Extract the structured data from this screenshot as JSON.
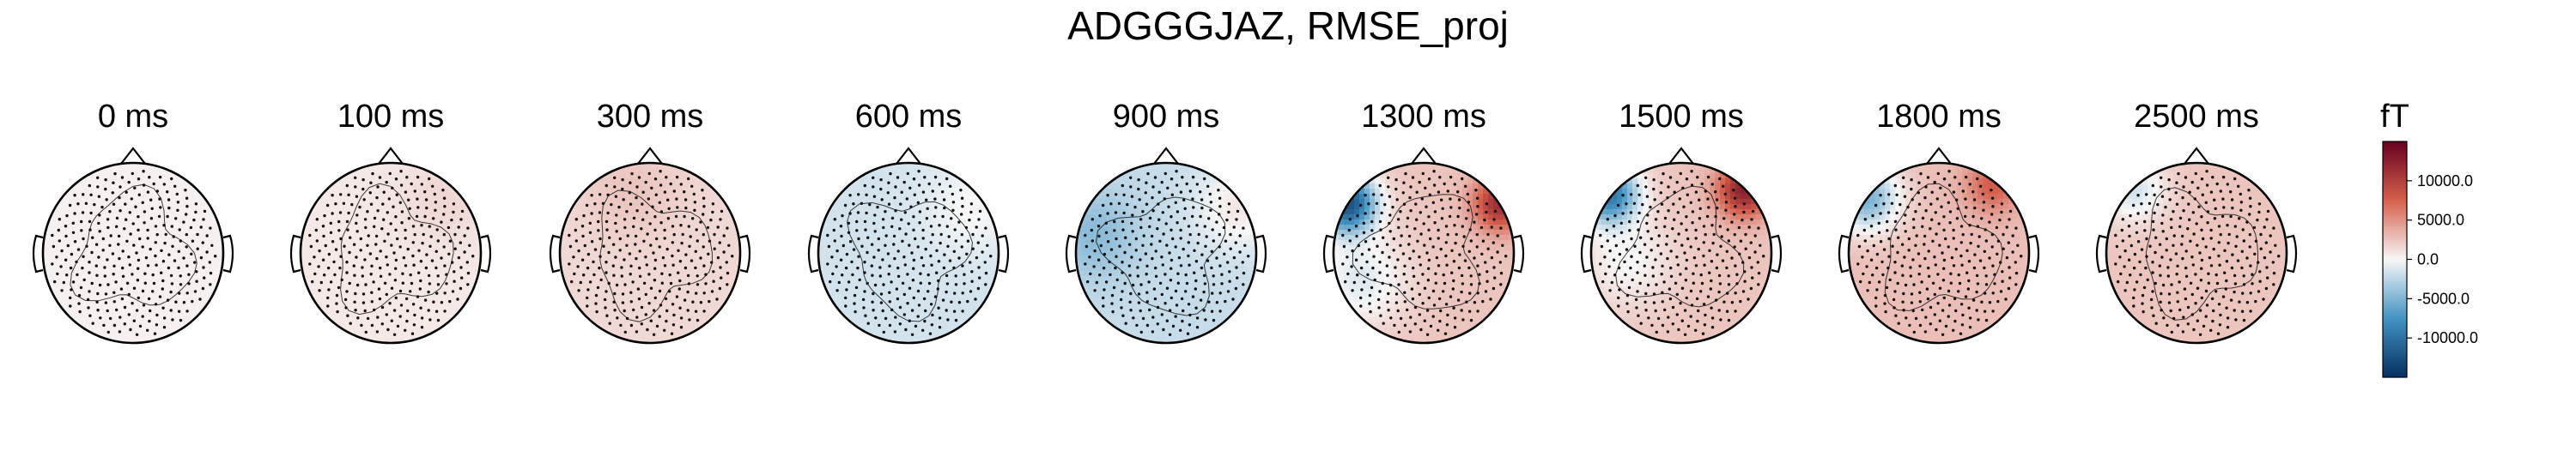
{
  "figure": {
    "title": "ADGGGJAZ, RMSE_proj"
  },
  "chart_data": {
    "type": "heatmap",
    "title": "ADGGGJAZ, RMSE_proj",
    "panels": [
      {
        "label": "0 ms",
        "time_ms": 0,
        "field": {
          "base": 300,
          "poles": []
        }
      },
      {
        "label": "100 ms",
        "time_ms": 100,
        "field": {
          "base": 700,
          "poles": [
            {
              "dx": 0.6,
              "dy": -0.6,
              "amp": 900,
              "width": 0.5
            }
          ]
        }
      },
      {
        "label": "300 ms",
        "time_ms": 300,
        "field": {
          "base": 1500,
          "poles": [
            {
              "dx": -0.2,
              "dy": -0.7,
              "amp": 1000,
              "width": 0.55
            }
          ]
        }
      },
      {
        "label": "600 ms",
        "time_ms": 600,
        "field": {
          "base": -1500,
          "poles": [
            {
              "dx": 0.7,
              "dy": -0.5,
              "amp": 1600,
              "width": 0.5
            }
          ]
        }
      },
      {
        "label": "900 ms",
        "time_ms": 900,
        "field": {
          "base": -2000,
          "poles": [
            {
              "dx": -0.8,
              "dy": -0.2,
              "amp": -2500,
              "width": 0.5
            },
            {
              "dx": 0.8,
              "dy": -0.5,
              "amp": 2800,
              "width": 0.45
            }
          ]
        }
      },
      {
        "label": "1300 ms",
        "time_ms": 1300,
        "field": {
          "base": 2500,
          "poles": [
            {
              "dx": -0.85,
              "dy": -0.55,
              "amp": -15000,
              "width": 0.32
            },
            {
              "dx": 0.85,
              "dy": -0.55,
              "amp": 9000,
              "width": 0.3
            },
            {
              "dx": -0.7,
              "dy": 0.3,
              "amp": -3500,
              "width": 0.5
            }
          ]
        }
      },
      {
        "label": "1500 ms",
        "time_ms": 1500,
        "field": {
          "base": 2500,
          "poles": [
            {
              "dx": -0.8,
              "dy": -0.65,
              "amp": -12000,
              "width": 0.32
            },
            {
              "dx": 0.7,
              "dy": -0.7,
              "amp": 10000,
              "width": 0.3
            },
            {
              "dx": -0.6,
              "dy": 0.1,
              "amp": -2500,
              "width": 0.5
            }
          ]
        }
      },
      {
        "label": "1800 ms",
        "time_ms": 1800,
        "field": {
          "base": 2800,
          "poles": [
            {
              "dx": -0.8,
              "dy": -0.6,
              "amp": -8000,
              "width": 0.35
            },
            {
              "dx": 0.6,
              "dy": -0.75,
              "amp": 5000,
              "width": 0.3
            }
          ]
        }
      },
      {
        "label": "2500 ms",
        "time_ms": 2500,
        "field": {
          "base": 2500,
          "poles": [
            {
              "dx": -0.7,
              "dy": -0.7,
              "amp": -4000,
              "width": 0.35
            }
          ]
        }
      }
    ],
    "colorbar": {
      "unit": "fT",
      "vmin": -15000,
      "vmax": 15000,
      "ticks": [
        10000,
        5000,
        0,
        -5000,
        -10000
      ],
      "tick_labels": [
        "10000.0",
        "5000.0",
        "0.0",
        "-5000.0",
        "-10000.0"
      ],
      "colormap": "RdBu_r",
      "colors": {
        "neg_end": "#053061",
        "neg_mid": "#4393c3",
        "center": "#f7f7f7",
        "pos_mid": "#d6604d",
        "pos_end": "#67001f"
      }
    },
    "sensors": {
      "count": 300,
      "marker": "dot"
    },
    "contours": true
  }
}
